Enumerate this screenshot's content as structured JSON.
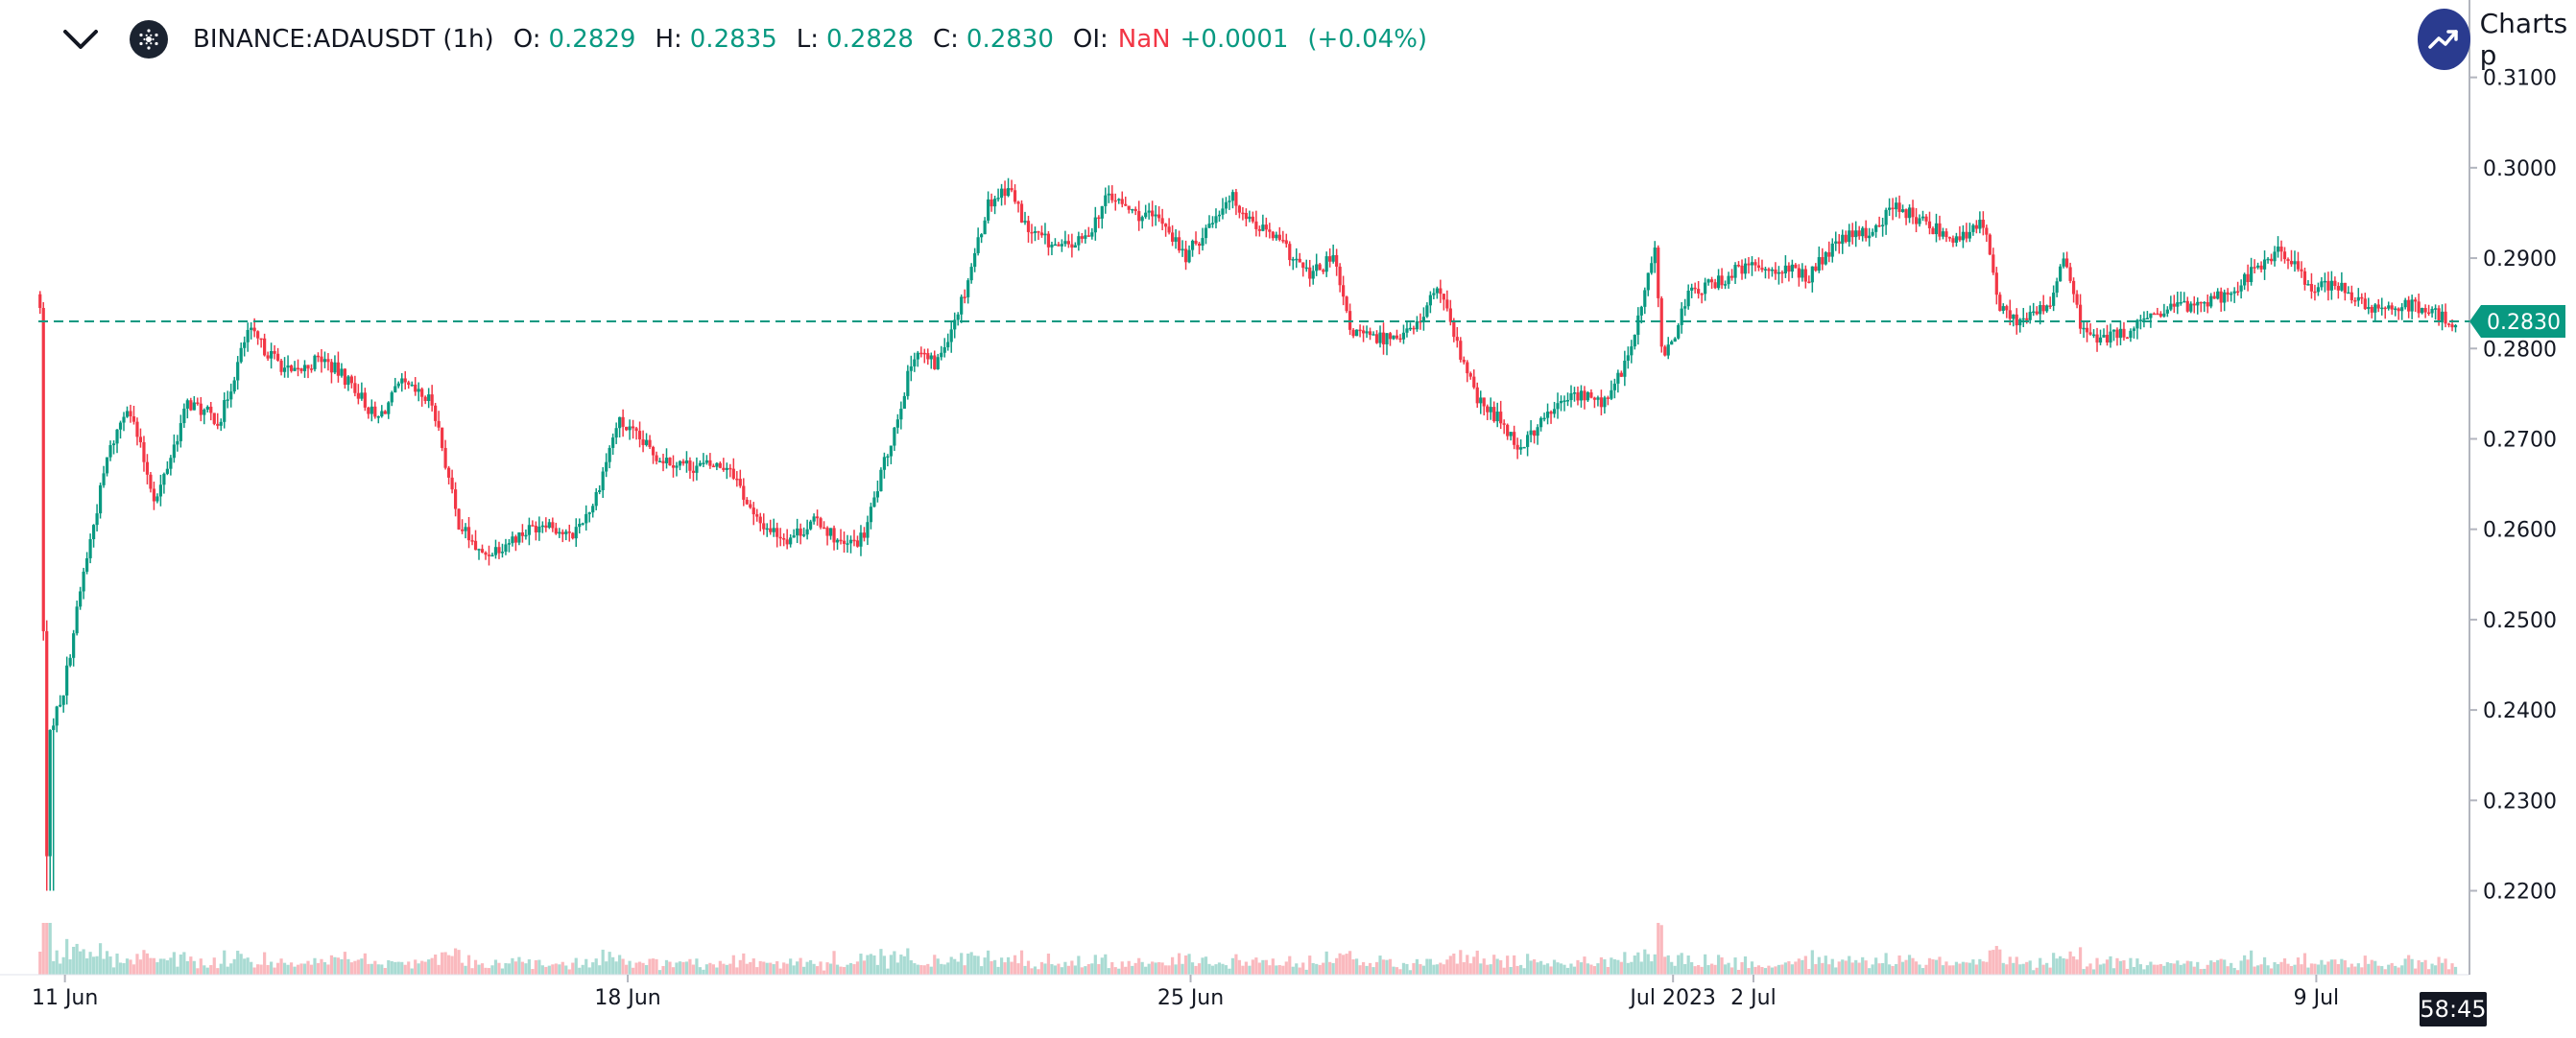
{
  "legend": {
    "symbol": "BINANCE:ADAUSDT (1h)",
    "open_label": "O:",
    "open": "0.2829",
    "high_label": "H:",
    "high": "0.2835",
    "low_label": "L:",
    "low": "0.2828",
    "close_label": "C:",
    "close": "0.2830",
    "oi_label": "OI:",
    "oi": "NaN",
    "change": "+0.0001",
    "change_pct": "(+0.04%)"
  },
  "brand": {
    "text": "Charts p"
  },
  "price_tag": "0.2830",
  "countdown": "58:45",
  "colors": {
    "up": "#089981",
    "down": "#f23645",
    "accent": "#2a3b8f",
    "axis": "#b2b5be"
  },
  "icons": {
    "collapse": "chevron-down-icon",
    "coin": "cardano-icon",
    "brand": "trend-up-icon"
  },
  "chart_data": {
    "type": "candlestick",
    "title": "BINANCE:ADAUSDT (1h)",
    "x_ticks": [
      "11 Jun",
      "18 Jun",
      "25 Jun",
      "Jul 2023",
      "2 Jul",
      "9 Jul"
    ],
    "x_tick_days": [
      1,
      8,
      15,
      21,
      22,
      29
    ],
    "x_range_days": [
      0.67,
      30.75
    ],
    "ylim": [
      0.2122,
      0.3106
    ],
    "y_ticks": [
      "0.3100",
      "0.3000",
      "0.2900",
      "0.2800",
      "0.2700",
      "0.2600",
      "0.2500",
      "0.2400",
      "0.2300",
      "0.2200"
    ],
    "last_price": 0.283,
    "grid": false,
    "path_points": [
      [
        0.67,
        0.286
      ],
      [
        0.72,
        0.284
      ],
      [
        0.78,
        0.22
      ],
      [
        0.84,
        0.238
      ],
      [
        1.0,
        0.242
      ],
      [
        1.25,
        0.255
      ],
      [
        1.55,
        0.268
      ],
      [
        1.8,
        0.274
      ],
      [
        2.15,
        0.263
      ],
      [
        2.55,
        0.274
      ],
      [
        2.95,
        0.272
      ],
      [
        3.3,
        0.282
      ],
      [
        3.5,
        0.28
      ],
      [
        3.85,
        0.277
      ],
      [
        4.2,
        0.279
      ],
      [
        4.6,
        0.276
      ],
      [
        4.9,
        0.272
      ],
      [
        5.2,
        0.276
      ],
      [
        5.6,
        0.274
      ],
      [
        5.9,
        0.261
      ],
      [
        6.2,
        0.257
      ],
      [
        6.6,
        0.259
      ],
      [
        7.0,
        0.261
      ],
      [
        7.3,
        0.259
      ],
      [
        7.6,
        0.263
      ],
      [
        7.9,
        0.272
      ],
      [
        8.4,
        0.268
      ],
      [
        8.8,
        0.267
      ],
      [
        9.3,
        0.267
      ],
      [
        9.6,
        0.261
      ],
      [
        10.0,
        0.259
      ],
      [
        10.4,
        0.261
      ],
      [
        10.7,
        0.258
      ],
      [
        10.95,
        0.259
      ],
      [
        11.3,
        0.27
      ],
      [
        11.6,
        0.28
      ],
      [
        11.85,
        0.278
      ],
      [
        12.2,
        0.286
      ],
      [
        12.5,
        0.296
      ],
      [
        12.75,
        0.298
      ],
      [
        13.0,
        0.293
      ],
      [
        13.4,
        0.291
      ],
      [
        13.7,
        0.292
      ],
      [
        14.0,
        0.297
      ],
      [
        14.3,
        0.295
      ],
      [
        14.7,
        0.294
      ],
      [
        14.95,
        0.29
      ],
      [
        15.2,
        0.293
      ],
      [
        15.5,
        0.297
      ],
      [
        15.8,
        0.294
      ],
      [
        16.1,
        0.292
      ],
      [
        16.5,
        0.288
      ],
      [
        16.8,
        0.29
      ],
      [
        17.0,
        0.282
      ],
      [
        17.3,
        0.281
      ],
      [
        17.8,
        0.282
      ],
      [
        18.1,
        0.287
      ],
      [
        18.3,
        0.281
      ],
      [
        18.6,
        0.274
      ],
      [
        18.9,
        0.272
      ],
      [
        19.1,
        0.269
      ],
      [
        19.5,
        0.273
      ],
      [
        19.8,
        0.275
      ],
      [
        20.2,
        0.274
      ],
      [
        20.5,
        0.28
      ],
      [
        20.8,
        0.291
      ],
      [
        20.9,
        0.278
      ],
      [
        21.2,
        0.286
      ],
      [
        21.5,
        0.287
      ],
      [
        21.9,
        0.289
      ],
      [
        22.3,
        0.289
      ],
      [
        22.7,
        0.288
      ],
      [
        23.1,
        0.292
      ],
      [
        23.5,
        0.293
      ],
      [
        23.8,
        0.296
      ],
      [
        24.1,
        0.294
      ],
      [
        24.6,
        0.292
      ],
      [
        24.9,
        0.294
      ],
      [
        25.1,
        0.284
      ],
      [
        25.4,
        0.283
      ],
      [
        25.7,
        0.285
      ],
      [
        25.9,
        0.29
      ],
      [
        26.1,
        0.282
      ],
      [
        26.4,
        0.281
      ],
      [
        26.7,
        0.282
      ],
      [
        27.1,
        0.284
      ],
      [
        27.5,
        0.285
      ],
      [
        27.9,
        0.286
      ],
      [
        28.3,
        0.289
      ],
      [
        28.6,
        0.291
      ],
      [
        28.9,
        0.287
      ],
      [
        29.3,
        0.287
      ],
      [
        29.7,
        0.284
      ],
      [
        30.1,
        0.285
      ],
      [
        30.4,
        0.284
      ],
      [
        30.75,
        0.283
      ]
    ]
  }
}
